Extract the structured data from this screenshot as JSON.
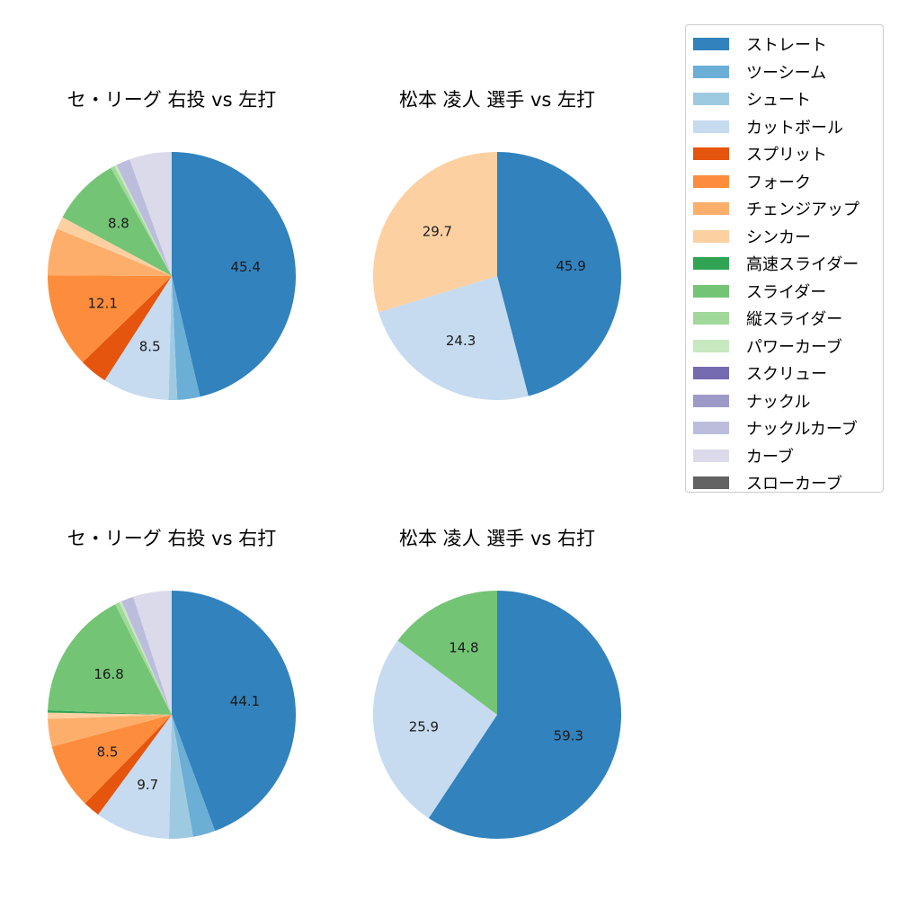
{
  "legend": {
    "items": [
      {
        "label": "ストレート",
        "color": "#3182bd"
      },
      {
        "label": "ツーシーム",
        "color": "#6baed6"
      },
      {
        "label": "シュート",
        "color": "#9ecae1"
      },
      {
        "label": "カットボール",
        "color": "#c6dbef"
      },
      {
        "label": "スプリット",
        "color": "#e6550d"
      },
      {
        "label": "フォーク",
        "color": "#fd8d3c"
      },
      {
        "label": "チェンジアップ",
        "color": "#fdae6b"
      },
      {
        "label": "シンカー",
        "color": "#fdd0a2"
      },
      {
        "label": "高速スライダー",
        "color": "#31a354"
      },
      {
        "label": "スライダー",
        "color": "#74c476"
      },
      {
        "label": "縦スライダー",
        "color": "#a1d99b"
      },
      {
        "label": "パワーカーブ",
        "color": "#c7e9c0"
      },
      {
        "label": "スクリュー",
        "color": "#756bb1"
      },
      {
        "label": "ナックル",
        "color": "#9e9ac8"
      },
      {
        "label": "ナックルカーブ",
        "color": "#bcbddc"
      },
      {
        "label": "カーブ",
        "color": "#dadaeb"
      },
      {
        "label": "スローカーブ",
        "color": "#636363"
      }
    ]
  },
  "chart_data": [
    {
      "type": "pie",
      "title": "セ・リーグ 右投 vs 左打",
      "slices": [
        {
          "category": "ストレート",
          "value": 45.4,
          "label": "45.4"
        },
        {
          "category": "ツーシーム",
          "value": 2.9,
          "label": ""
        },
        {
          "category": "シュート",
          "value": 1.1,
          "label": ""
        },
        {
          "category": "カットボール",
          "value": 8.5,
          "label": "8.5"
        },
        {
          "category": "スプリット",
          "value": 3.6,
          "label": ""
        },
        {
          "category": "フォーク",
          "value": 12.1,
          "label": "12.1"
        },
        {
          "category": "チェンジアップ",
          "value": 6.0,
          "label": ""
        },
        {
          "category": "シンカー",
          "value": 1.6,
          "label": ""
        },
        {
          "category": "スライダー",
          "value": 8.8,
          "label": "8.8"
        },
        {
          "category": "縦スライダー",
          "value": 0.5,
          "label": ""
        },
        {
          "category": "パワーカーブ",
          "value": 0.3,
          "label": ""
        },
        {
          "category": "ナックルカーブ",
          "value": 1.8,
          "label": ""
        },
        {
          "category": "カーブ",
          "value": 5.4,
          "label": ""
        }
      ]
    },
    {
      "type": "pie",
      "title": "松本 凌人 選手 vs 左打",
      "slices": [
        {
          "category": "ストレート",
          "value": 45.9,
          "label": "45.9"
        },
        {
          "category": "カットボール",
          "value": 24.3,
          "label": "24.3"
        },
        {
          "category": "シンカー",
          "value": 29.7,
          "label": "29.7"
        }
      ]
    },
    {
      "type": "pie",
      "title": "セ・リーグ 右投 vs 右打",
      "slices": [
        {
          "category": "ストレート",
          "value": 44.1,
          "label": "44.1"
        },
        {
          "category": "ツーシーム",
          "value": 2.9,
          "label": ""
        },
        {
          "category": "シュート",
          "value": 3.1,
          "label": ""
        },
        {
          "category": "カットボール",
          "value": 9.7,
          "label": "9.7"
        },
        {
          "category": "スプリット",
          "value": 2.2,
          "label": ""
        },
        {
          "category": "フォーク",
          "value": 8.5,
          "label": "8.5"
        },
        {
          "category": "チェンジアップ",
          "value": 3.6,
          "label": ""
        },
        {
          "category": "シンカー",
          "value": 0.8,
          "label": ""
        },
        {
          "category": "高速スライダー",
          "value": 0.3,
          "label": ""
        },
        {
          "category": "スライダー",
          "value": 16.8,
          "label": "16.8"
        },
        {
          "category": "縦スライダー",
          "value": 0.6,
          "label": ""
        },
        {
          "category": "パワーカーブ",
          "value": 0.3,
          "label": ""
        },
        {
          "category": "ナックルカーブ",
          "value": 1.6,
          "label": ""
        },
        {
          "category": "カーブ",
          "value": 5.0,
          "label": ""
        }
      ]
    },
    {
      "type": "pie",
      "title": "松本 凌人 選手 vs 右打",
      "slices": [
        {
          "category": "ストレート",
          "value": 59.3,
          "label": "59.3"
        },
        {
          "category": "カットボール",
          "value": 25.9,
          "label": "25.9"
        },
        {
          "category": "スライダー",
          "value": 14.8,
          "label": "14.8"
        }
      ]
    }
  ]
}
